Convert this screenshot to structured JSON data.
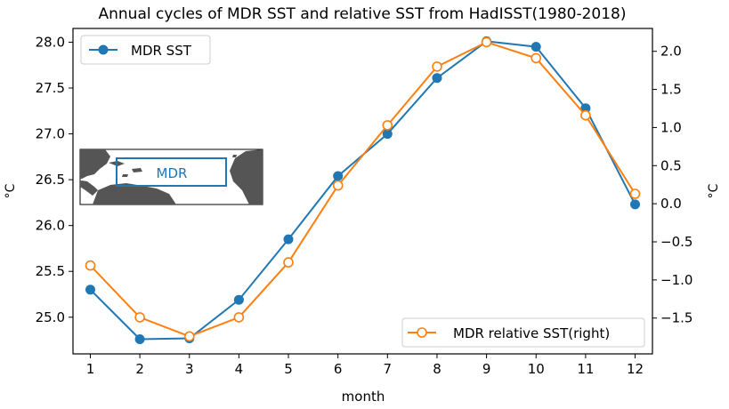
{
  "chart_data": {
    "type": "line",
    "title": "Annual cycles of MDR SST and relative SST from HadISST(1980-2018)",
    "xlabel": "month",
    "ylabel_left": "$^\\circ$C",
    "ylabel_right": "$^\\circ$C",
    "ylabel_left_display": "°C",
    "ylabel_right_display": "°C",
    "x": [
      1,
      2,
      3,
      4,
      5,
      6,
      7,
      8,
      9,
      10,
      11,
      12
    ],
    "xlim": [
      0.65,
      12.35
    ],
    "ylim_left": [
      24.6,
      28.15
    ],
    "ylim_right": [
      -1.97,
      2.3
    ],
    "yticks_left": [
      "25.0",
      "25.5",
      "26.0",
      "26.5",
      "27.0",
      "27.5",
      "28.0"
    ],
    "yticks_right": [
      "−1.5",
      "−1.0",
      "−0.5",
      "0.0",
      "0.5",
      "1.0",
      "1.5",
      "2.0"
    ],
    "series": [
      {
        "name": "MDR SST",
        "axis": "left",
        "color": "#1f77b4",
        "marker": "filled-circle",
        "values": [
          25.3,
          24.76,
          24.77,
          25.19,
          25.85,
          26.54,
          27.0,
          27.61,
          28.01,
          27.95,
          27.28,
          26.23
        ]
      },
      {
        "name": "MDR relative SST(right)",
        "axis": "right",
        "color": "#ff7f0e",
        "marker": "open-circle",
        "values": [
          -0.81,
          -1.49,
          -1.74,
          -1.49,
          -0.77,
          0.24,
          1.03,
          1.8,
          2.12,
          1.91,
          1.16,
          0.13
        ]
      }
    ],
    "legends": [
      {
        "placement": "upper-left",
        "entries": [
          "MDR SST"
        ]
      },
      {
        "placement": "lower-right",
        "entries": [
          "MDR relative SST(right)"
        ]
      }
    ],
    "inset": {
      "type": "map",
      "label": "MDR",
      "placement": "left-middle",
      "land_color": "#555555",
      "box_color": "#1f77b4"
    },
    "grid": false
  }
}
